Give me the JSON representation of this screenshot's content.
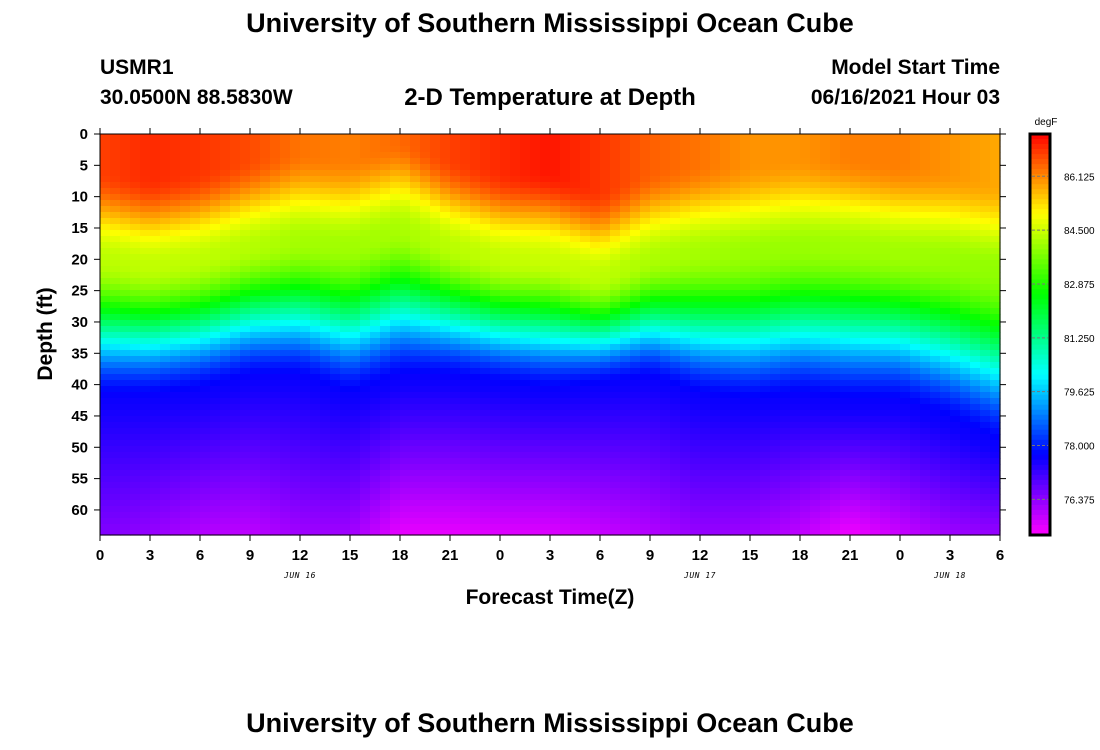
{
  "header": {
    "title": "University of Southern Mississippi Ocean Cube",
    "station_id": "USMR1",
    "coords": "30.0500N  88.5830W",
    "plot_title": "2-D Temperature at Depth",
    "start_label": "Model Start Time",
    "start_value": "06/16/2021 Hour 03"
  },
  "footer": {
    "title": "University of Southern Mississippi Ocean Cube"
  },
  "chart_data": {
    "type": "heatmap",
    "title": "2-D Temperature at Depth",
    "xlabel": "Forecast Time(Z)",
    "ylabel": "Depth (ft)",
    "x_tick_labels": [
      "0",
      "3",
      "6",
      "9",
      "12",
      "15",
      "18",
      "21",
      "0",
      "3",
      "6",
      "9",
      "12",
      "15",
      "18",
      "21",
      "0",
      "3",
      "6"
    ],
    "x_range_hours": [
      0,
      54
    ],
    "date_labels": [
      {
        "label": "JUN 16",
        "hour": 12
      },
      {
        "label": "JUN 17",
        "hour": 36
      },
      {
        "label": "JUN 18",
        "hour": 51
      }
    ],
    "y_ticks": [
      0,
      5,
      10,
      15,
      20,
      25,
      30,
      35,
      40,
      45,
      50,
      55,
      60
    ],
    "y_range_ft": [
      0,
      64
    ],
    "colorbar": {
      "unit": "degF",
      "labels": [
        "86.125",
        "84.500",
        "82.875",
        "81.250",
        "79.625",
        "78.000",
        "76.375"
      ],
      "range_degF": [
        75.3,
        87.4
      ]
    },
    "surface_temp_degF": [
      86.8,
      87.0,
      86.9,
      86.7,
      86.3,
      86.2,
      86.4,
      86.8,
      87.0,
      87.2,
      86.9,
      86.5,
      86.3,
      86.0,
      86.0,
      86.2,
      86.2,
      86.0,
      85.8
    ],
    "thermocline_depth_ft": [
      20,
      21,
      20,
      18,
      17,
      18,
      15,
      18,
      20,
      20,
      23,
      20,
      19,
      19,
      18,
      18,
      19,
      20,
      22
    ],
    "deep_layer_depth_ft": [
      43,
      43,
      42,
      40,
      40,
      43,
      40,
      40,
      41,
      42,
      41,
      40,
      43,
      44,
      43,
      44,
      44,
      47,
      51
    ],
    "bottom_temp_degF": [
      76.5,
      76.3,
      76.0,
      75.9,
      76.2,
      76.2,
      75.5,
      75.5,
      75.6,
      75.6,
      75.8,
      76.0,
      76.3,
      76.2,
      75.9,
      75.4,
      75.8,
      76.2,
      76.3
    ]
  }
}
